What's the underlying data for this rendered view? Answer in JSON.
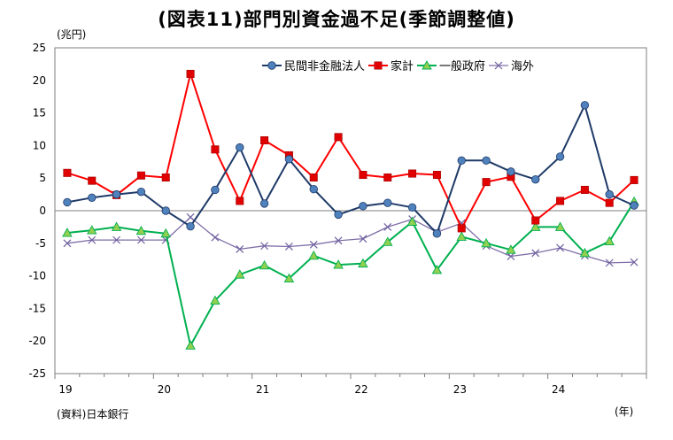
{
  "title": "(図表11)部門別資金過不足(季節調整値)",
  "y_unit_label": "(兆円)",
  "x_unit_label": "(年)",
  "source": "(資料)日本銀行",
  "chart_data": {
    "type": "line",
    "ylim": [
      -25,
      25
    ],
    "yticks": [
      25,
      20,
      15,
      10,
      5,
      0,
      -5,
      -10,
      -15,
      -20,
      -25
    ],
    "x_year_labels": [
      "19",
      "20",
      "21",
      "22",
      "23",
      "24"
    ],
    "grid": false,
    "legend_position": "top-right",
    "series": [
      {
        "name": "民間非金融法人",
        "color": "#1f3a68",
        "marker": "circle",
        "marker_color": "#4f81bd",
        "values": [
          1.3,
          2.0,
          2.5,
          2.9,
          0.0,
          -2.4,
          3.2,
          9.7,
          1.1,
          7.9,
          3.3,
          -0.6,
          0.7,
          1.2,
          0.5,
          -3.5,
          7.7,
          7.7,
          6.0,
          4.8,
          8.3,
          16.2,
          2.5,
          0.8
        ]
      },
      {
        "name": "家計",
        "color": "#ff0000",
        "marker": "square",
        "marker_color": "#e00000",
        "values": [
          5.8,
          4.6,
          2.4,
          5.4,
          5.1,
          21.0,
          9.4,
          1.5,
          10.8,
          8.5,
          5.1,
          11.3,
          5.5,
          5.1,
          5.7,
          5.5,
          -2.7,
          4.4,
          5.2,
          -1.5,
          1.5,
          3.2,
          1.2,
          4.7
        ]
      },
      {
        "name": "一般政府",
        "color": "#00b050",
        "marker": "triangle",
        "marker_color": "#92d050",
        "values": [
          -3.4,
          -3.0,
          -2.5,
          -3.1,
          -3.5,
          -20.7,
          -13.8,
          -9.8,
          -8.4,
          -10.4,
          -6.9,
          -8.3,
          -8.1,
          -4.8,
          -1.7,
          -9.1,
          -4.0,
          -5.0,
          -6.0,
          -2.5,
          -2.5,
          -6.5,
          -4.7,
          1.4
        ]
      },
      {
        "name": "海外",
        "color": "#7f6fa8",
        "marker": "x",
        "marker_color": "#6f5f9f",
        "values": [
          -5.0,
          -4.5,
          -4.5,
          -4.5,
          -4.5,
          -1.0,
          -4.1,
          -5.9,
          -5.4,
          -5.5,
          -5.2,
          -4.6,
          -4.3,
          -2.5,
          -1.3,
          -3.3,
          -1.9,
          -5.4,
          -7.0,
          -6.5,
          -5.7,
          -6.9,
          -8.0,
          -7.9
        ]
      }
    ]
  }
}
